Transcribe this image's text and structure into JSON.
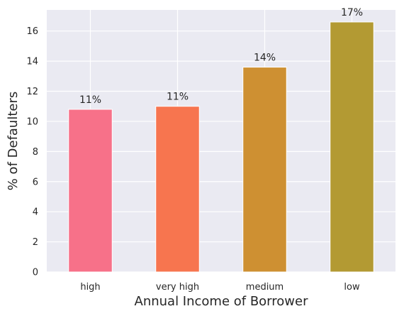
{
  "chart_data": {
    "type": "bar",
    "categories": [
      "high",
      "very high",
      "medium",
      "low"
    ],
    "values": [
      10.8,
      11.0,
      13.6,
      16.6
    ],
    "data_labels": [
      "11%",
      "11%",
      "14%",
      "17%"
    ],
    "colors": [
      "#f77189",
      "#f7754f",
      "#ce9032",
      "#b39a33"
    ],
    "title": "",
    "xlabel": "Annual Income of Borrower",
    "ylabel": "% of Defaulters",
    "ylim": [
      0,
      17.4
    ],
    "yticks": [
      0,
      2,
      4,
      6,
      8,
      10,
      12,
      14,
      16
    ],
    "grid": true,
    "background": "#eaeaf2"
  }
}
